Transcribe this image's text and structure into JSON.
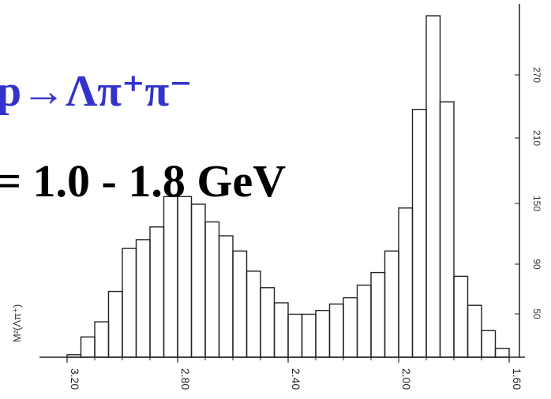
{
  "header": {
    "reaction": "p→Λπ⁺π⁻",
    "energy_range": "= 1.0 - 1.8 GeV"
  },
  "colors": {
    "reaction": "#3333cc",
    "energy_range": "#000000",
    "histogram": "#222222",
    "axis": "#222222"
  },
  "chart_data": {
    "type": "bar",
    "title": "",
    "xlabel": "",
    "ylabel": "M²(Λπ⁺)",
    "x_axis_direction": "decreasing left-to-right",
    "x_ticks": [
      "3.20",
      "2.80",
      "2.40",
      "2.00",
      "1.60"
    ],
    "right_axis_ticks": [
      "50",
      "90",
      "150",
      "210",
      "270"
    ],
    "bin_edges": [
      3.2,
      3.15,
      3.1,
      3.05,
      3.0,
      2.95,
      2.9,
      2.85,
      2.8,
      2.75,
      2.7,
      2.65,
      2.6,
      2.55,
      2.5,
      2.45,
      2.4,
      2.35,
      2.3,
      2.25,
      2.2,
      2.15,
      2.1,
      2.05,
      2.0,
      1.95,
      1.9,
      1.85,
      1.8,
      1.75,
      1.7,
      1.65,
      1.6
    ],
    "values": [
      2,
      16,
      28,
      52,
      86,
      93,
      103,
      127,
      127,
      121,
      107,
      96,
      84,
      68,
      55,
      43,
      34,
      34,
      37,
      42,
      47,
      57,
      67,
      84,
      118,
      196,
      270,
      202,
      64,
      41,
      21,
      7
    ],
    "ylim": [
      0,
      270
    ]
  }
}
